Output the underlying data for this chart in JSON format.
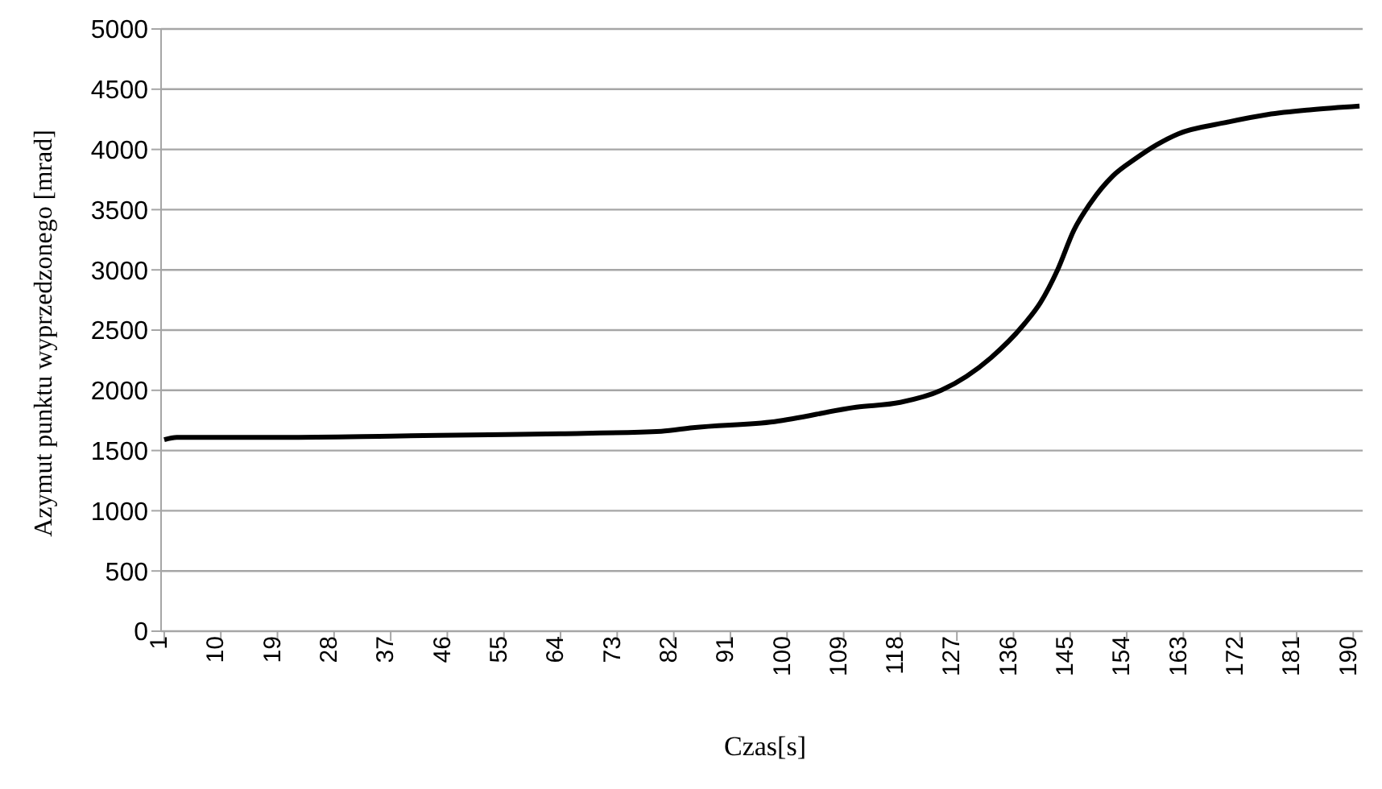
{
  "chart_data": {
    "type": "line",
    "xlabel": "Czas[s]",
    "ylabel": "Azymut punktu wyprzedzonego [mrad]",
    "x": [
      1,
      3,
      20,
      37,
      50,
      64,
      80,
      85,
      98,
      111,
      118,
      124.5,
      132.4,
      137.7,
      140.3,
      143,
      145.6,
      148.3,
      151.8,
      155.3,
      158.8,
      162.2,
      169.4,
      176.4,
      183.4,
      191
    ],
    "series": [
      {
        "color": "#000000",
        "values": [
          1590,
          1610,
          1610,
          1620,
          1630,
          1640,
          1660,
          1690,
          1740,
          1860,
          1900,
          2000,
          2270,
          2550,
          2730,
          3000,
          3330,
          3560,
          3780,
          3920,
          4040,
          4130,
          4220,
          4290,
          4330,
          4360
        ]
      }
    ],
    "xlim": [
      0.5,
      191.5
    ],
    "xticks": [
      1,
      10,
      19,
      28,
      37,
      46,
      55,
      64,
      73,
      82,
      91,
      100,
      109,
      118,
      127,
      136,
      145,
      154,
      163,
      172,
      181,
      190
    ],
    "ylim": [
      0,
      5000
    ],
    "yticks": [
      0,
      500,
      1000,
      1500,
      2000,
      2500,
      3000,
      3500,
      4000,
      4500,
      5000
    ],
    "grid": "y",
    "marker": "none",
    "line_style": "solid"
  }
}
